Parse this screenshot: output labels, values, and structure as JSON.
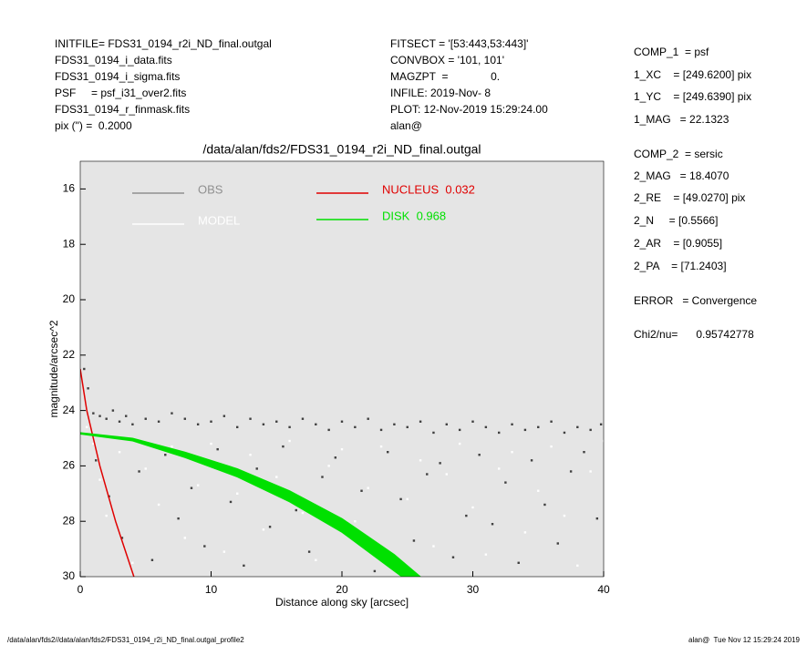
{
  "header": {
    "left": [
      "INITFILE= FDS31_0194_r2i_ND_final.outgal",
      "FDS31_0194_i_data.fits",
      "FDS31_0194_i_sigma.fits",
      "PSF     = psf_i31_over2.fits",
      "FDS31_0194_r_finmask.fits",
      "pix (\") =  0.2000"
    ],
    "middle": [
      "FITSECT = '[53:443,53:443]'",
      "CONVBOX = '101, 101'",
      "MAGZPT  =              0.",
      "INFILE: 2019-Nov- 8",
      "PLOT: 12-Nov-2019 15:29:24.00",
      "alan@"
    ],
    "right": [
      "COMP_1  = psf",
      "1_XC    = [249.6200] pix",
      "1_YC    = [249.6390] pix",
      "1_MAG   = 22.1323",
      "COMP_2  = sersic",
      "2_MAG   = 18.4070",
      "2_RE    = [49.0270] pix",
      "2_N     = [0.5566]",
      "2_AR    = [0.9055]",
      "2_PA    = [71.2403]",
      "ERROR   = Convergence",
      "Chi2/nu=      0.95742778"
    ]
  },
  "footer": {
    "left": "/data/alan/fds2//data/alan/fds2/FDS31_0194_r2i_ND_final.outgal_profile2",
    "right": "alan@  Tue Nov 12 15:29:24 2019"
  },
  "chart_data": {
    "type": "scatter",
    "title": "/data/alan/fds2/FDS31_0194_r2i_ND_final.outgal",
    "x_label": "Distance along sky [arcsec]",
    "y_label": "magnitude/arcsec^2",
    "xlim": [
      0,
      40
    ],
    "xticks": [
      0,
      10,
      20,
      30,
      40
    ],
    "ylim": [
      30,
      15
    ],
    "yticks": [
      16,
      18,
      20,
      22,
      24,
      26,
      28,
      30
    ],
    "background": "#e5e5e5",
    "series": [
      {
        "name": "OBS",
        "color": "#404040",
        "legend_color": "#909090",
        "style": "points",
        "x": [
          0.3,
          0.6,
          1,
          1.5,
          2,
          2.5,
          3,
          3.5,
          4,
          5,
          6,
          7,
          8,
          9,
          10,
          11,
          12,
          13,
          14,
          15,
          16,
          17,
          18,
          19,
          20,
          21,
          22,
          23,
          24,
          25,
          26,
          27,
          28,
          29,
          30,
          31,
          32,
          33,
          34,
          35,
          36,
          37,
          38,
          39,
          39.8,
          1.2,
          2.2,
          3.2,
          4.5,
          5.5,
          6.5,
          7.5,
          8.5,
          9.5,
          10.5,
          11.5,
          12.5,
          13.5,
          14.5,
          15.5,
          16.5,
          17.5,
          18.5,
          19.5,
          20.5,
          21.5,
          22.5,
          23.5,
          24.5,
          25.5,
          26.5,
          27.5,
          28.5,
          29.5,
          30.5,
          31.5,
          32.5,
          33.5,
          34.5,
          35.5,
          36.5,
          37.5,
          38.5,
          39.5
        ],
        "values": [
          22.5,
          23.2,
          24.1,
          24.2,
          24.3,
          24.0,
          24.4,
          24.2,
          24.5,
          24.3,
          24.4,
          24.1,
          24.3,
          24.5,
          24.4,
          24.2,
          24.6,
          24.3,
          24.5,
          24.4,
          24.6,
          24.3,
          24.5,
          24.7,
          24.4,
          24.6,
          24.3,
          24.7,
          24.5,
          24.6,
          24.4,
          24.8,
          24.5,
          24.7,
          24.4,
          24.6,
          24.8,
          24.5,
          24.7,
          24.6,
          24.4,
          24.8,
          24.6,
          24.7,
          24.5,
          25.8,
          27.1,
          28.6,
          26.2,
          29.4,
          25.6,
          27.9,
          26.8,
          28.9,
          25.4,
          27.3,
          29.6,
          26.1,
          28.2,
          25.3,
          27.6,
          29.1,
          26.4,
          25.7,
          28.4,
          26.9,
          29.8,
          25.5,
          27.2,
          28.7,
          26.3,
          25.9,
          29.3,
          27.8,
          25.6,
          28.1,
          26.6,
          29.5,
          25.8,
          27.4,
          28.8,
          26.2,
          25.5,
          27.9
        ]
      },
      {
        "name": "MODEL",
        "color": "#ffffff",
        "legend_color": "#ffffff",
        "style": "points",
        "x": [
          0.5,
          1,
          1.5,
          2,
          3,
          4,
          5,
          6,
          7,
          8,
          9,
          10,
          11,
          12,
          13,
          14,
          15,
          16,
          17,
          18,
          19,
          20,
          21,
          22,
          23,
          24,
          25,
          26,
          27,
          28,
          29,
          30,
          31,
          32,
          33,
          34,
          35,
          36,
          37,
          38,
          39,
          40
        ],
        "values": [
          24.6,
          25.2,
          26.5,
          27.8,
          25.5,
          29.5,
          26.1,
          27.4,
          25.3,
          28.6,
          26.7,
          25.2,
          29.1,
          27.0,
          25.6,
          28.3,
          26.4,
          25.1,
          27.7,
          29.4,
          26.0,
          25.4,
          28.0,
          26.8,
          25.3,
          29.7,
          27.2,
          25.8,
          28.9,
          26.3,
          25.2,
          27.5,
          29.2,
          26.1,
          25.5,
          28.4,
          26.9,
          25.3,
          27.8,
          29.6,
          26.2,
          25.1
        ]
      },
      {
        "name": "NUCLEUS  0.032",
        "color": "#e00000",
        "legend_color": "#e00000",
        "style": "line",
        "x": [
          0,
          0.5,
          1.0,
          1.5,
          2.1,
          2.7,
          3.4,
          4.1
        ],
        "values": [
          22.5,
          24.0,
          25.0,
          26.0,
          27.0,
          28.0,
          29.0,
          30.0
        ]
      },
      {
        "name": "DISK  0.968",
        "color": "#00e000",
        "legend_color": "#00e000",
        "style": "band",
        "x": [
          0,
          4,
          8,
          12,
          16,
          20,
          24,
          26
        ],
        "values": [
          24.8,
          25.0,
          25.5,
          26.1,
          26.9,
          27.9,
          29.2,
          30.0
        ],
        "lower": [
          24.85,
          25.1,
          25.7,
          26.4,
          27.3,
          28.4,
          29.8,
          30.5
        ]
      }
    ]
  }
}
